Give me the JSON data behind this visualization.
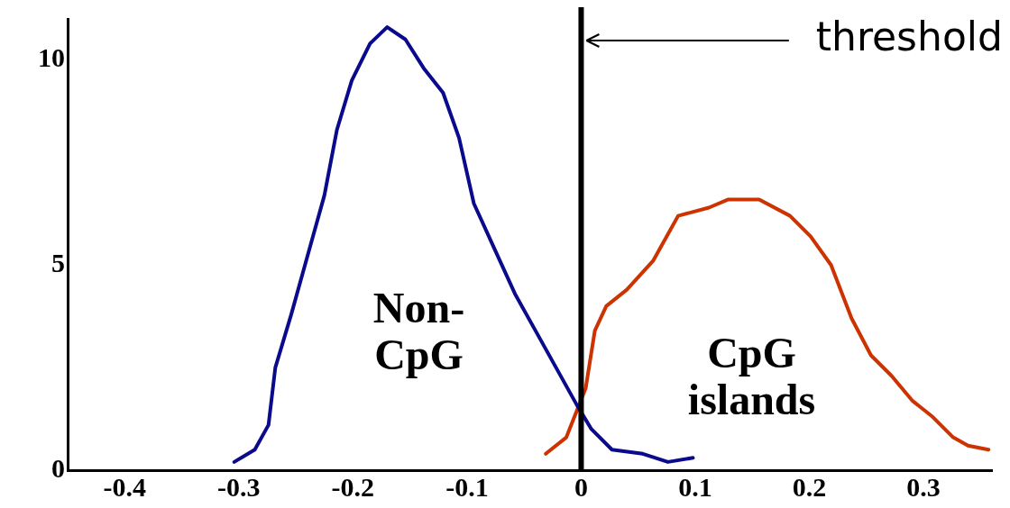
{
  "chart_data": {
    "type": "line",
    "xlim": [
      -0.45,
      0.36
    ],
    "xticks": [
      -0.4,
      -0.3,
      -0.2,
      -0.1,
      0,
      0.1,
      0.2,
      0.3
    ],
    "ylim": [
      0,
      11
    ],
    "yticks": [
      0,
      5,
      10
    ],
    "grid": false,
    "legend": false,
    "marker": "none",
    "line_style": "solid",
    "series": [
      {
        "color": "#0a0a8c",
        "x": [
          -0.304,
          -0.286,
          -0.274,
          -0.268,
          -0.254,
          -0.238,
          -0.225,
          -0.214,
          -0.201,
          -0.185,
          -0.17,
          -0.154,
          -0.138,
          -0.121,
          -0.107,
          -0.094,
          -0.076,
          -0.058,
          -0.04,
          -0.022,
          -0.004,
          0.009,
          0.027,
          0.054,
          0.076,
          0.098
        ],
        "values": [
          0.2,
          0.5,
          1.1,
          2.5,
          3.8,
          5.4,
          6.7,
          8.3,
          9.5,
          10.4,
          10.8,
          10.5,
          9.8,
          9.2,
          8.1,
          6.5,
          5.4,
          4.3,
          3.4,
          2.5,
          1.6,
          1,
          0.5,
          0.4,
          0.2,
          0.3
        ]
      },
      {
        "color": "#cc3300",
        "x": [
          -0.031,
          -0.013,
          0.004,
          0.012,
          0.022,
          0.04,
          0.063,
          0.085,
          0.112,
          0.129,
          0.156,
          0.183,
          0.201,
          0.219,
          0.237,
          0.254,
          0.272,
          0.29,
          0.308,
          0.326,
          0.339,
          0.357
        ],
        "values": [
          0.4,
          0.8,
          2,
          3.4,
          4,
          4.4,
          5.1,
          6.2,
          6.4,
          6.6,
          6.6,
          6.2,
          5.7,
          5,
          3.7,
          2.8,
          2.3,
          1.7,
          1.3,
          0.8,
          0.6,
          0.5
        ]
      }
    ],
    "ref_lines": [
      {
        "axis": "x",
        "value": 0,
        "label": "threshold",
        "color": "#000000"
      }
    ],
    "annotations": [
      "Non-\nCpG",
      "CpG\nislands"
    ]
  }
}
